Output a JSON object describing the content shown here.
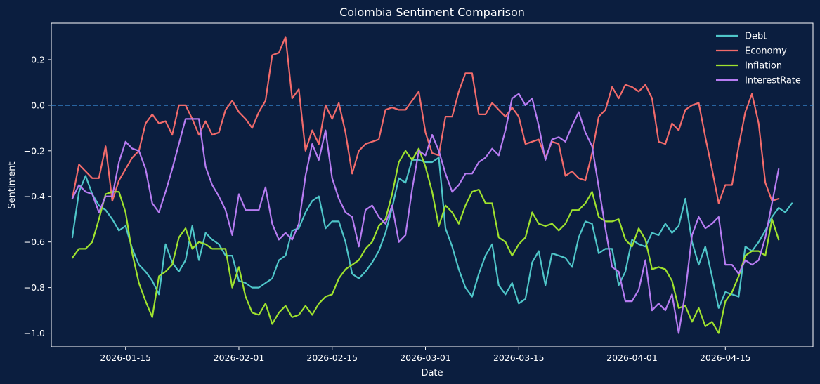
{
  "chart_data": {
    "type": "line",
    "title": "Colombia Sentiment Comparison",
    "xlabel": "Date",
    "ylabel": "Sentiment",
    "x_start": "2026-01-07",
    "x_ticks": [
      "2026-01-15",
      "2026-02-01",
      "2026-02-15",
      "2026-03-01",
      "2026-03-15",
      "2026-04-01",
      "2026-04-15"
    ],
    "y_ticks": [
      "0.2",
      "0.0",
      "−0.2",
      "−0.4",
      "−0.6",
      "−0.8",
      "−1.0"
    ],
    "ylim": [
      -1.06,
      0.36
    ],
    "reference_line": {
      "value": 0.0,
      "style": "dashed",
      "color": "#3b8fd9"
    },
    "legend_position": "top-right",
    "grid": false,
    "colors": {
      "background": "#0b1e3f",
      "axes": "#ffffff"
    },
    "series": [
      {
        "name": "Debt",
        "color": "#4fc6c9",
        "values": [
          -0.58,
          -0.38,
          -0.31,
          -0.39,
          -0.44,
          -0.46,
          -0.5,
          -0.55,
          -0.53,
          -0.63,
          -0.7,
          -0.73,
          -0.77,
          -0.83,
          -0.61,
          -0.69,
          -0.73,
          -0.68,
          -0.53,
          -0.68,
          -0.56,
          -0.59,
          -0.61,
          -0.66,
          -0.66,
          -0.77,
          -0.78,
          -0.8,
          -0.8,
          -0.78,
          -0.76,
          -0.68,
          -0.66,
          -0.55,
          -0.54,
          -0.47,
          -0.42,
          -0.4,
          -0.54,
          -0.51,
          -0.51,
          -0.6,
          -0.74,
          -0.76,
          -0.73,
          -0.69,
          -0.64,
          -0.56,
          -0.45,
          -0.32,
          -0.34,
          -0.24,
          -0.24,
          -0.25,
          -0.25,
          -0.23,
          -0.54,
          -0.62,
          -0.72,
          -0.8,
          -0.84,
          -0.74,
          -0.66,
          -0.61,
          -0.79,
          -0.83,
          -0.78,
          -0.87,
          -0.85,
          -0.69,
          -0.64,
          -0.79,
          -0.65,
          -0.66,
          -0.67,
          -0.71,
          -0.58,
          -0.51,
          -0.52,
          -0.65,
          -0.63,
          -0.63,
          -0.79,
          -0.73,
          -0.59,
          -0.61,
          -0.62,
          -0.56,
          -0.57,
          -0.52,
          -0.56,
          -0.53,
          -0.41,
          -0.6,
          -0.7,
          -0.62,
          -0.75,
          -0.89,
          -0.82,
          -0.83,
          -0.84,
          -0.62,
          -0.64,
          -0.6,
          -0.55,
          -0.49,
          -0.45,
          -0.47,
          -0.43
        ]
      },
      {
        "name": "Economy",
        "color": "#f26b6b",
        "values": [
          -0.41,
          -0.26,
          -0.29,
          -0.32,
          -0.32,
          -0.18,
          -0.42,
          -0.33,
          -0.28,
          -0.23,
          -0.2,
          -0.08,
          -0.04,
          -0.08,
          -0.07,
          -0.13,
          0.0,
          0.0,
          -0.06,
          -0.13,
          -0.07,
          -0.13,
          -0.12,
          -0.02,
          0.02,
          -0.03,
          -0.06,
          -0.1,
          -0.03,
          0.02,
          0.22,
          0.23,
          0.3,
          0.03,
          0.07,
          -0.2,
          -0.11,
          -0.17,
          0.0,
          -0.06,
          0.01,
          -0.12,
          -0.3,
          -0.2,
          -0.17,
          -0.16,
          -0.15,
          -0.02,
          -0.01,
          -0.02,
          -0.02,
          0.02,
          0.06,
          -0.12,
          -0.21,
          -0.22,
          -0.05,
          -0.05,
          0.06,
          0.14,
          0.14,
          -0.04,
          -0.04,
          0.01,
          -0.02,
          -0.05,
          -0.01,
          -0.05,
          -0.17,
          -0.16,
          -0.15,
          -0.23,
          -0.16,
          -0.17,
          -0.31,
          -0.29,
          -0.32,
          -0.33,
          -0.21,
          -0.05,
          -0.02,
          0.08,
          0.03,
          0.09,
          0.08,
          0.06,
          0.09,
          0.03,
          -0.16,
          -0.17,
          -0.08,
          -0.11,
          -0.02,
          0.0,
          0.01,
          -0.14,
          -0.28,
          -0.43,
          -0.35,
          -0.35,
          -0.18,
          -0.03,
          0.05,
          -0.08,
          -0.34,
          -0.42,
          -0.41
        ]
      },
      {
        "name": "Inflation",
        "color": "#9fe22e",
        "values": [
          -0.67,
          -0.63,
          -0.63,
          -0.6,
          -0.5,
          -0.39,
          -0.38,
          -0.38,
          -0.47,
          -0.65,
          -0.78,
          -0.86,
          -0.93,
          -0.75,
          -0.73,
          -0.7,
          -0.58,
          -0.54,
          -0.63,
          -0.6,
          -0.61,
          -0.63,
          -0.63,
          -0.63,
          -0.8,
          -0.71,
          -0.84,
          -0.91,
          -0.92,
          -0.87,
          -0.96,
          -0.91,
          -0.88,
          -0.93,
          -0.92,
          -0.88,
          -0.92,
          -0.87,
          -0.84,
          -0.83,
          -0.76,
          -0.72,
          -0.7,
          -0.68,
          -0.63,
          -0.6,
          -0.53,
          -0.5,
          -0.39,
          -0.25,
          -0.2,
          -0.24,
          -0.19,
          -0.27,
          -0.38,
          -0.53,
          -0.44,
          -0.47,
          -0.52,
          -0.44,
          -0.38,
          -0.37,
          -0.43,
          -0.43,
          -0.58,
          -0.6,
          -0.66,
          -0.61,
          -0.58,
          -0.47,
          -0.52,
          -0.53,
          -0.52,
          -0.55,
          -0.52,
          -0.46,
          -0.46,
          -0.43,
          -0.38,
          -0.49,
          -0.51,
          -0.51,
          -0.5,
          -0.59,
          -0.62,
          -0.54,
          -0.59,
          -0.72,
          -0.71,
          -0.72,
          -0.77,
          -0.89,
          -0.88,
          -0.95,
          -0.89,
          -0.97,
          -0.95,
          -1.0,
          -0.86,
          -0.82,
          -0.75,
          -0.66,
          -0.64,
          -0.64,
          -0.66,
          -0.5,
          -0.59
        ]
      },
      {
        "name": "InterestRate",
        "color": "#b77cf2",
        "values": [
          -0.41,
          -0.35,
          -0.38,
          -0.39,
          -0.47,
          -0.4,
          -0.4,
          -0.25,
          -0.16,
          -0.19,
          -0.2,
          -0.28,
          -0.43,
          -0.47,
          -0.38,
          -0.28,
          -0.17,
          -0.06,
          -0.06,
          -0.06,
          -0.27,
          -0.35,
          -0.4,
          -0.46,
          -0.57,
          -0.39,
          -0.46,
          -0.46,
          -0.46,
          -0.36,
          -0.52,
          -0.59,
          -0.56,
          -0.59,
          -0.52,
          -0.31,
          -0.17,
          -0.24,
          -0.11,
          -0.32,
          -0.41,
          -0.47,
          -0.49,
          -0.62,
          -0.46,
          -0.44,
          -0.49,
          -0.52,
          -0.44,
          -0.6,
          -0.57,
          -0.37,
          -0.2,
          -0.22,
          -0.13,
          -0.2,
          -0.3,
          -0.38,
          -0.35,
          -0.3,
          -0.3,
          -0.25,
          -0.23,
          -0.19,
          -0.22,
          -0.11,
          0.03,
          0.05,
          0.0,
          0.03,
          -0.09,
          -0.24,
          -0.15,
          -0.14,
          -0.16,
          -0.09,
          -0.03,
          -0.12,
          -0.18,
          -0.36,
          -0.54,
          -0.71,
          -0.73,
          -0.86,
          -0.86,
          -0.81,
          -0.68,
          -0.9,
          -0.87,
          -0.9,
          -0.83,
          -1.0,
          -0.82,
          -0.57,
          -0.49,
          -0.54,
          -0.52,
          -0.49,
          -0.7,
          -0.7,
          -0.74,
          -0.68,
          -0.7,
          -0.68,
          -0.58,
          -0.43,
          -0.28
        ]
      }
    ]
  }
}
